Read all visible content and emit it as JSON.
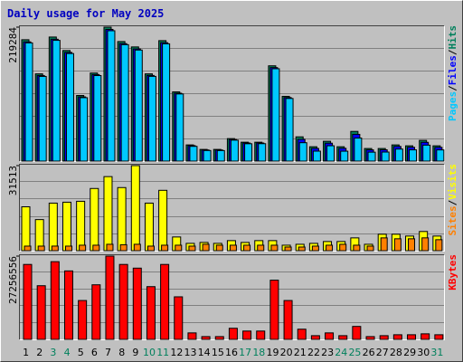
{
  "title": "Daily usage for May 2025",
  "chart_data": [
    {
      "type": "bar",
      "ylim": [
        0,
        219284
      ],
      "yticks": [
        219284
      ],
      "grid_divisions": 6,
      "separator": "/",
      "series": [
        {
          "name": "Hits",
          "color": "#00805c",
          "values": [
            198700,
            142800,
            203100,
            181000,
            107400,
            144200,
            219284,
            195700,
            186900,
            142800,
            197200,
            113300,
            26500,
            19100,
            19100,
            36800,
            30900,
            30900,
            156000,
            106000,
            39700,
            23500,
            32400,
            23500,
            48600,
            20600,
            20600,
            26500,
            25000,
            33900,
            25000
          ]
        },
        {
          "name": "Files",
          "color": "#0000ff",
          "values": [
            195200,
            140100,
            199500,
            177900,
            105100,
            141600,
            215600,
            192300,
            183600,
            140200,
            193800,
            111100,
            25300,
            18200,
            18200,
            35300,
            29600,
            29600,
            153100,
            104000,
            35600,
            20800,
            29300,
            20900,
            43800,
            18400,
            18500,
            24000,
            22600,
            30700,
            22500
          ]
        },
        {
          "name": "Pages",
          "color": "#00c8ff",
          "values": [
            193500,
            138600,
            197700,
            176100,
            103800,
            140000,
            213400,
            190600,
            181800,
            138700,
            192000,
            109900,
            24100,
            17300,
            17200,
            34300,
            28400,
            28500,
            151200,
            102500,
            30100,
            16300,
            25100,
            16200,
            37700,
            14600,
            14800,
            19700,
            18400,
            26100,
            18300
          ]
        }
      ]
    },
    {
      "type": "bar",
      "ylim": [
        0,
        31513
      ],
      "yticks": [
        31513
      ],
      "grid_divisions": 5,
      "separator": "/",
      "series": [
        {
          "name": "Visits",
          "color": "#ffff00",
          "values": [
            16260,
            11520,
            17620,
            17960,
            18300,
            23040,
            27440,
            23380,
            31513,
            17620,
            22360,
            5080,
            2710,
            3050,
            2710,
            3730,
            3050,
            3730,
            3730,
            2030,
            2370,
            2710,
            3390,
            3390,
            4740,
            2370,
            6100,
            6100,
            5420,
            7110,
            5420
          ]
        },
        {
          "name": "Sites",
          "color": "#ff8000",
          "values": [
            1690,
            1690,
            1700,
            1690,
            2030,
            2030,
            2370,
            2200,
            2370,
            1690,
            2030,
            2030,
            1690,
            2370,
            2030,
            2030,
            2030,
            2030,
            2030,
            1350,
            1350,
            1690,
            2030,
            2370,
            2030,
            1690,
            4740,
            4410,
            4410,
            4750,
            4070
          ]
        }
      ]
    },
    {
      "type": "bar",
      "ylim": [
        0,
        27256556
      ],
      "yticks": [
        27256556
      ],
      "grid_divisions": 5,
      "categories": [
        "1",
        "2",
        "3",
        "4",
        "5",
        "6",
        "7",
        "8",
        "9",
        "10",
        "11",
        "12",
        "13",
        "14",
        "15",
        "16",
        "17",
        "18",
        "19",
        "20",
        "21",
        "22",
        "23",
        "24",
        "25",
        "26",
        "27",
        "28",
        "29",
        "30",
        "31"
      ],
      "category_colors": [
        "#000000",
        "#000000",
        "#00805c",
        "#00805c",
        "#000000",
        "#000000",
        "#000000",
        "#000000",
        "#000000",
        "#00805c",
        "#00805c",
        "#000000",
        "#000000",
        "#000000",
        "#000000",
        "#000000",
        "#00805c",
        "#00805c",
        "#000000",
        "#000000",
        "#000000",
        "#000000",
        "#000000",
        "#00805c",
        "#00805c",
        "#000000",
        "#000000",
        "#000000",
        "#000000",
        "#000000",
        "#00805c"
      ],
      "series": [
        {
          "name": "KBytes",
          "color": "#ff0000",
          "values": [
            24530900,
            17565300,
            25439400,
            22410900,
            12719700,
            17868200,
            27256556,
            24530900,
            23319500,
            17262500,
            24530900,
            13931100,
            2120000,
            908600,
            908600,
            3634200,
            2725700,
            2725700,
            19382400,
            12719700,
            3331400,
            1211400,
            2120000,
            1211400,
            4239900,
            908600,
            1211400,
            1514300,
            1514300,
            1817100,
            1514300
          ]
        }
      ]
    }
  ]
}
